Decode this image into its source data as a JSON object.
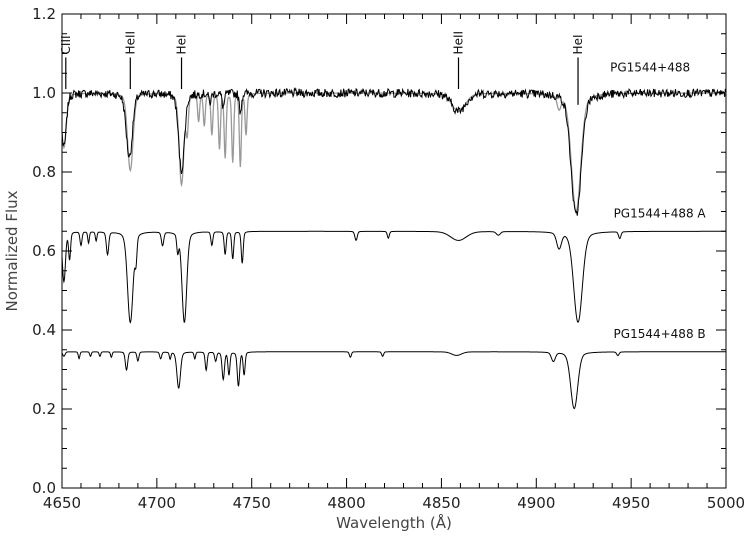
{
  "chart_data": {
    "type": "line",
    "xlabel": "Wavelength (Å)",
    "ylabel": "Normalized Flux",
    "xlim": [
      4650,
      5000
    ],
    "ylim": [
      0.0,
      1.2
    ],
    "x_major_ticks": [
      4650,
      4700,
      4750,
      4800,
      4850,
      4900,
      4950,
      5000
    ],
    "y_major_ticks": [
      0.0,
      0.2,
      0.4,
      0.6,
      0.8,
      1.0,
      1.2
    ],
    "x_tick_labels": [
      "4650",
      "4700",
      "4750",
      "4800",
      "4850",
      "4900",
      "4950",
      "5000"
    ],
    "y_tick_labels": [
      "0.0",
      "0.2",
      "0.4",
      "0.6",
      "0.8",
      "1.0",
      "1.2"
    ],
    "grid": false,
    "spectra": [
      {
        "name": "PG1544+488",
        "color": "#000000",
        "model_overlay_color": "#999999",
        "continuum": 1.0,
        "label_at": [
          4960,
          1.055
        ]
      },
      {
        "name": "PG1544+488 A",
        "color": "#000000",
        "continuum": 0.65,
        "label_at": [
          4965,
          0.685
        ]
      },
      {
        "name": "PG1544+488 B",
        "color": "#000000",
        "continuum": 0.345,
        "label_at": [
          4965,
          0.38
        ]
      }
    ],
    "line_ids": [
      {
        "label": "CIII",
        "wavelength": 4652
      },
      {
        "label": "HeII",
        "wavelength": 4686
      },
      {
        "label": "HeI",
        "wavelength": 4713
      },
      {
        "label": "HeII",
        "wavelength": 4859
      },
      {
        "label": "HeI",
        "wavelength": 4922
      }
    ]
  }
}
